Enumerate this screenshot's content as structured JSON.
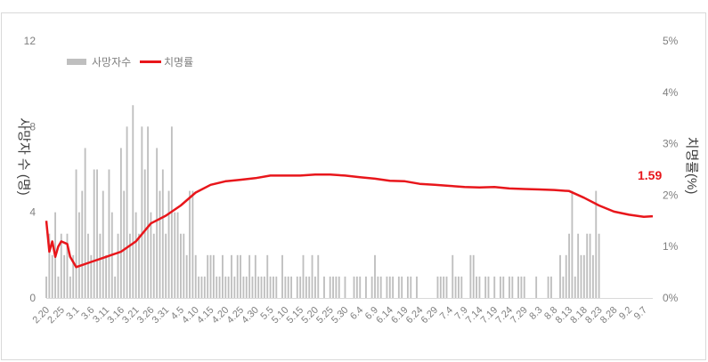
{
  "chart_data": {
    "type": "bar+line",
    "title": "",
    "legend": {
      "position": "top-left",
      "entries": [
        {
          "label": "사망자수",
          "type": "bar",
          "color": "#bfbfbf"
        },
        {
          "label": "치명률",
          "type": "line",
          "color": "#e8161b"
        }
      ]
    },
    "y_left": {
      "label": "사망자 수 (명)",
      "ticks": [
        "0",
        "4",
        "8",
        "12"
      ],
      "range": [
        0,
        12
      ]
    },
    "y_right": {
      "label": "치명률(%)",
      "ticks": [
        "0%",
        "1%",
        "2%",
        "3%",
        "4%",
        "5%"
      ],
      "range": [
        0,
        5
      ]
    },
    "x_tick_labels": [
      "2.20",
      "2.25",
      "3.1",
      "3.6",
      "3.11",
      "3.16",
      "3.21",
      "3.26",
      "3.31",
      "4.5",
      "4.10",
      "4.15",
      "4.20",
      "4.25",
      "4.30",
      "5.5",
      "5.10",
      "5.15",
      "5.20",
      "5.25",
      "5.30",
      "6.4",
      "6.9",
      "6.14",
      "6.19",
      "6.24",
      "6.29",
      "7.4",
      "7.9",
      "7.14",
      "7.19",
      "7.24",
      "7.29",
      "8.3",
      "8.8",
      "8.13",
      "8.18",
      "8.23",
      "8.28",
      "9.2",
      "9.7"
    ],
    "x_start": "2.20",
    "x_end": "9.10",
    "daily_deaths": [
      1,
      3,
      2,
      4,
      1,
      3,
      2,
      3,
      1,
      2,
      6,
      4,
      5,
      7,
      3,
      2,
      6,
      6,
      3,
      5,
      2,
      6,
      4,
      1,
      3,
      7,
      5,
      8,
      3,
      9,
      4,
      3,
      8,
      6,
      8,
      4,
      3,
      7,
      5,
      6,
      3,
      5,
      8,
      4,
      4,
      3,
      3,
      2,
      5,
      5,
      2,
      1,
      1,
      1,
      2,
      2,
      2,
      1,
      1,
      2,
      1,
      1,
      2,
      1,
      2,
      2,
      1,
      1,
      2,
      1,
      2,
      1,
      1,
      1,
      2,
      1,
      1,
      1,
      0,
      2,
      1,
      1,
      1,
      0,
      1,
      1,
      2,
      1,
      1,
      2,
      1,
      2,
      0,
      1,
      0,
      1,
      1,
      1,
      1,
      0,
      1,
      0,
      0,
      1,
      1,
      1,
      0,
      1,
      0,
      1,
      2,
      1,
      1,
      0,
      1,
      1,
      1,
      0,
      1,
      1,
      0,
      1,
      1,
      0,
      1,
      0,
      0,
      0,
      0,
      0,
      0,
      1,
      1,
      1,
      1,
      0,
      2,
      1,
      1,
      1,
      0,
      0,
      2,
      2,
      1,
      1,
      0,
      1,
      1,
      0,
      1,
      0,
      1,
      1,
      0,
      1,
      1,
      0,
      1,
      1,
      1,
      0,
      0,
      0,
      1,
      0,
      0,
      0,
      1,
      1,
      0,
      0,
      2,
      1,
      2,
      3,
      5,
      1,
      3,
      2,
      2,
      3,
      3,
      2,
      5,
      3
    ],
    "fatality_rate_points": [
      {
        "x": "2.20",
        "y": 1.5
      },
      {
        "x": "2.21",
        "y": 0.9
      },
      {
        "x": "2.22",
        "y": 1.1
      },
      {
        "x": "2.23",
        "y": 0.8
      },
      {
        "x": "2.24",
        "y": 1.0
      },
      {
        "x": "2.25",
        "y": 1.1
      },
      {
        "x": "2.27",
        "y": 1.05
      },
      {
        "x": "2.28",
        "y": 0.8
      },
      {
        "x": "3.1",
        "y": 0.6
      },
      {
        "x": "3.6",
        "y": 0.7
      },
      {
        "x": "3.11",
        "y": 0.8
      },
      {
        "x": "3.16",
        "y": 0.9
      },
      {
        "x": "3.21",
        "y": 1.1
      },
      {
        "x": "3.26",
        "y": 1.45
      },
      {
        "x": "3.31",
        "y": 1.6
      },
      {
        "x": "4.5",
        "y": 1.8
      },
      {
        "x": "4.10",
        "y": 2.05
      },
      {
        "x": "4.15",
        "y": 2.2
      },
      {
        "x": "4.20",
        "y": 2.27
      },
      {
        "x": "4.25",
        "y": 2.3
      },
      {
        "x": "4.30",
        "y": 2.33
      },
      {
        "x": "5.5",
        "y": 2.38
      },
      {
        "x": "5.10",
        "y": 2.38
      },
      {
        "x": "5.15",
        "y": 2.38
      },
      {
        "x": "5.20",
        "y": 2.4
      },
      {
        "x": "5.25",
        "y": 2.4
      },
      {
        "x": "5.30",
        "y": 2.38
      },
      {
        "x": "6.4",
        "y": 2.35
      },
      {
        "x": "6.9",
        "y": 2.32
      },
      {
        "x": "6.14",
        "y": 2.28
      },
      {
        "x": "6.19",
        "y": 2.27
      },
      {
        "x": "6.24",
        "y": 2.22
      },
      {
        "x": "6.29",
        "y": 2.2
      },
      {
        "x": "7.4",
        "y": 2.18
      },
      {
        "x": "7.9",
        "y": 2.16
      },
      {
        "x": "7.14",
        "y": 2.15
      },
      {
        "x": "7.19",
        "y": 2.16
      },
      {
        "x": "7.24",
        "y": 2.13
      },
      {
        "x": "7.29",
        "y": 2.12
      },
      {
        "x": "8.3",
        "y": 2.11
      },
      {
        "x": "8.8",
        "y": 2.1
      },
      {
        "x": "8.13",
        "y": 2.08
      },
      {
        "x": "8.18",
        "y": 1.95
      },
      {
        "x": "8.23",
        "y": 1.8
      },
      {
        "x": "8.28",
        "y": 1.68
      },
      {
        "x": "9.2",
        "y": 1.62
      },
      {
        "x": "9.7",
        "y": 1.58
      },
      {
        "x": "9.10",
        "y": 1.59
      }
    ],
    "annotation": {
      "text": "1.59",
      "color": "#e8161b"
    }
  }
}
